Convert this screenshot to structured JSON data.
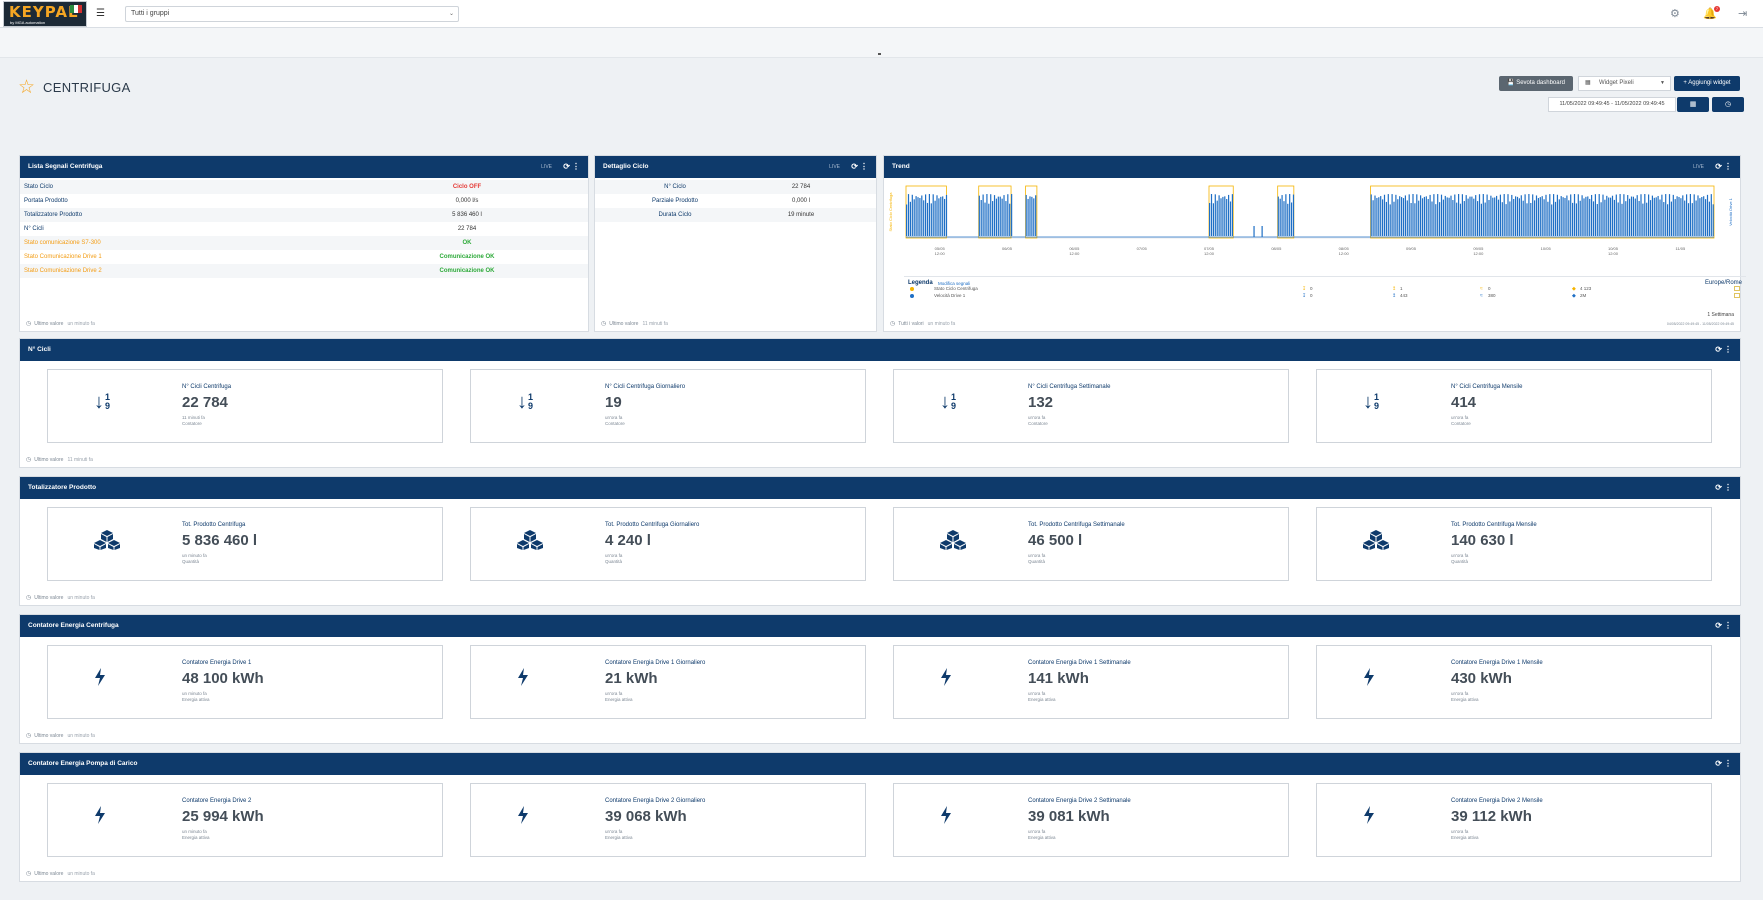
{
  "topbar": {
    "logo": "KEYPAL",
    "logo_sub": "by MGA automation",
    "menu_icon": "hamburger-icon",
    "group_select": "Tutti i gruppi",
    "notifications_count": "7"
  },
  "page": {
    "title": "CENTRIFUGA",
    "btn_dashboard": "Sevota dashboard",
    "widget_select": "Widget Pixeli",
    "btn_add_widget": "Aggiungi widget",
    "date_range": "11/05/2022 09:49:45 - 11/05/2022 09:49:45"
  },
  "signals_panel": {
    "title": "Lista Segnali Centrifuga",
    "live": "LIVE",
    "rows": [
      {
        "key": "Stato Ciclo",
        "value": "Ciclo OFF",
        "style": "red"
      },
      {
        "key": "Portata Prodotto",
        "value": "0,000 l/s",
        "style": ""
      },
      {
        "key": "Totalizzatore Prodotto",
        "value": "5 836 460 l",
        "style": ""
      },
      {
        "key": "N° Cicli",
        "value": "22 784",
        "style": ""
      },
      {
        "key": "Stato comunicazione S7-300",
        "value": "OK",
        "style": "green",
        "warn": true
      },
      {
        "key": "Stato Comunicazione Drive 1",
        "value": "Comunicazione OK",
        "style": "green",
        "warn": true
      },
      {
        "key": "Stato Comunicazione Drive 2",
        "value": "Comunicazione OK",
        "style": "green",
        "warn": true
      }
    ],
    "footer": "Ultimo valore",
    "footer_ago": "un minuto fa"
  },
  "cycle_panel": {
    "title": "Dettaglio Ciclo",
    "live": "LIVE",
    "rows": [
      {
        "key": "N° Ciclo",
        "value": "22 784"
      },
      {
        "key": "Parziale Prodotto",
        "value": "0,000 l"
      },
      {
        "key": "Durata Ciclo",
        "value": "19 minute"
      }
    ],
    "footer": "Ultimo valore",
    "footer_ago": "11 minuti fa"
  },
  "trend_panel": {
    "title": "Trend",
    "live": "LIVE",
    "y_left": "Stato Ciclo Centrifuga",
    "y_right": "Velocità Drive 1",
    "x_ticks": [
      "05/05 12:00",
      "06/05",
      "06/05 12:00",
      "07/05",
      "07/05 12:00",
      "08/05",
      "08/05 12:00",
      "09/05",
      "09/05 12:00",
      "10/05",
      "10/05 12:00",
      "11/05"
    ],
    "legend_title": "Legenda",
    "legend_edit": "Modifica segnali",
    "timezone": "Europe/Rome",
    "series": [
      {
        "name": "Stato Ciclo Centrifuga",
        "color": "#f5b400",
        "min": "0",
        "max": "1",
        "avg": "0",
        "last": "4 123"
      },
      {
        "name": "Velocità Drive 1",
        "color": "#1f6fc5",
        "min": "0",
        "max": "443",
        "avg": "380",
        "last": "2M"
      }
    ],
    "footer": "Tutti i valori",
    "footer_ago": "un minuto fa",
    "period": "1 Settimana",
    "period_range": "04/05/2022 09:49:45 - 11/05/2022 09:49:45"
  },
  "sections": [
    {
      "title": "N° Cicli",
      "icon": "sort-numeric-icon",
      "footer": "Ultimo valore",
      "footer_ago": "11 minuti fa",
      "cards": [
        {
          "label": "N° Cicli Centrifuga",
          "value": "22 784",
          "ago": "11 minuti fa",
          "unit": "Contatore"
        },
        {
          "label": "N° Cicli Centrifuga Giornaliero",
          "value": "19",
          "ago": "un'ora fa",
          "unit": "Contatore"
        },
        {
          "label": "N° Cicli Centrifuga Settimanale",
          "value": "132",
          "ago": "un'ora fa",
          "unit": "Contatore"
        },
        {
          "label": "N° Cicli Centrifuga Mensile",
          "value": "414",
          "ago": "un'ora fa",
          "unit": "Contatore"
        }
      ]
    },
    {
      "title": "Totalizzatore Prodotto",
      "icon": "cubes-icon",
      "footer": "Ultimo valore",
      "footer_ago": "un minuto fa",
      "cards": [
        {
          "label": "Tot. Prodotto Centrifuga",
          "value": "5 836 460 l",
          "ago": "un minuto fa",
          "unit": "Quantità"
        },
        {
          "label": "Tot. Prodotto Centrifuga Giornaliero",
          "value": "4 240 l",
          "ago": "un'ora fa",
          "unit": "Quantità"
        },
        {
          "label": "Tot. Prodotto Centrifuga Settimanale",
          "value": "46 500 l",
          "ago": "un'ora fa",
          "unit": "Quantità"
        },
        {
          "label": "Tot. Prodotto Centrifuga Mensile",
          "value": "140 630 l",
          "ago": "un'ora fa",
          "unit": "Quantità"
        }
      ]
    },
    {
      "title": "Contatore Energia Centrifuga",
      "icon": "bolt-icon",
      "footer": "Ultimo valore",
      "footer_ago": "un minuto fa",
      "cards": [
        {
          "label": "Contatore Energia Drive 1",
          "value": "48 100 kWh",
          "ago": "un minuto fa",
          "unit": "Energia attiva"
        },
        {
          "label": "Contatore Energia Drive 1 Giornaliero",
          "value": "21 kWh",
          "ago": "un'ora fa",
          "unit": "Energia attiva"
        },
        {
          "label": "Contatore Energia Drive 1 Settimanale",
          "value": "141 kWh",
          "ago": "un'ora fa",
          "unit": "Energia attiva"
        },
        {
          "label": "Contatore Energia Drive 1 Mensile",
          "value": "430 kWh",
          "ago": "un'ora fa",
          "unit": "Energia attiva"
        }
      ]
    },
    {
      "title": "Contatore Energia Pompa di Carico",
      "icon": "bolt-icon",
      "footer": "Ultimo valore",
      "footer_ago": "un minuto fa",
      "cards": [
        {
          "label": "Contatore Energia Drive 2",
          "value": "25 994 kWh",
          "ago": "un minuto fa",
          "unit": "Energia attiva"
        },
        {
          "label": "Contatore Energia Drive 2 Giornaliero",
          "value": "39 068 kWh",
          "ago": "un'ora fa",
          "unit": "Energia attiva"
        },
        {
          "label": "Contatore Energia Drive 2 Settimanale",
          "value": "39 081 kWh",
          "ago": "un'ora fa",
          "unit": "Energia attiva"
        },
        {
          "label": "Contatore Energia Drive 2 Mensile",
          "value": "39 112 kWh",
          "ago": "un'ora fa",
          "unit": "Energia attiva"
        }
      ]
    }
  ],
  "colors": {
    "primary": "#0e3a6b",
    "accent": "#f5a623",
    "ok": "#2eaa3a",
    "alarm": "#e53935"
  }
}
